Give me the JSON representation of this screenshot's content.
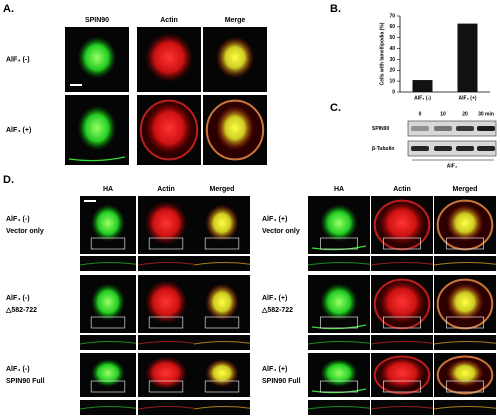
{
  "panel_a": {
    "label": "A.",
    "columns": [
      "SPIN90",
      "Actin",
      "Merge"
    ],
    "rows": [
      "AlF₄ (-)",
      "AlF₄ (+)"
    ]
  },
  "chart_data": {
    "type": "bar",
    "label": "B.",
    "ylabel": "Cells with lamellipodia (%)",
    "categories": [
      "AlF₄ (-)",
      "AlF₄ (+)"
    ],
    "values": [
      11,
      63
    ],
    "color": "#111111",
    "ylim": [
      0,
      70
    ],
    "yticks": [
      0,
      10,
      20,
      30,
      40,
      50,
      60,
      70
    ]
  },
  "panel_c": {
    "label": "C.",
    "times": [
      "0",
      "10",
      "20",
      "30 min"
    ],
    "rows": [
      "SPIN90",
      "β-Tubulin"
    ],
    "treatment": "AlF₄"
  },
  "panel_d": {
    "label": "D.",
    "left": {
      "columns": [
        "HA",
        "Actin",
        "Merged"
      ],
      "rows": [
        [
          "AlF₄ (-)",
          "Vector only"
        ],
        [
          "AlF₄ (-)",
          "△582-722"
        ],
        [
          "AlF₄ (-)",
          "SPIN90 Full"
        ]
      ]
    },
    "right": {
      "columns": [
        "HA",
        "Actin",
        "Merged"
      ],
      "rows": [
        [
          "AlF₄ (+)",
          "Vector only"
        ],
        [
          "AlF₄ (+)",
          "△582-722"
        ],
        [
          "AlF₄ (+)",
          "SPIN90 Full"
        ]
      ]
    }
  }
}
